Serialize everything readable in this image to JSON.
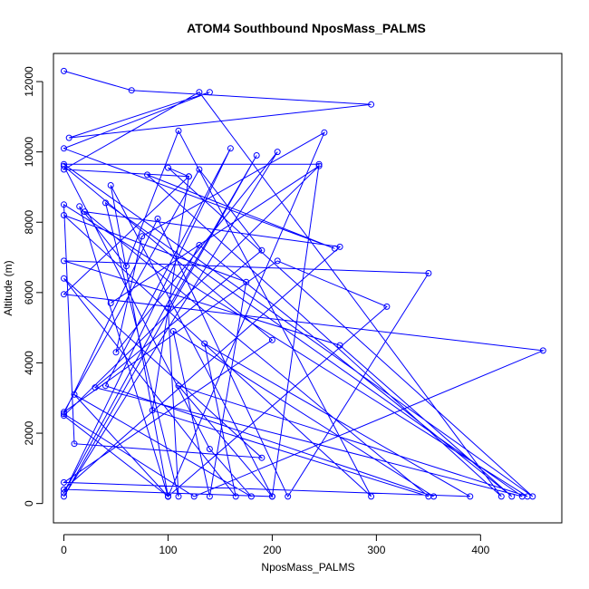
{
  "chart_data": {
    "type": "line",
    "title": "ATOM4 Southbound NposMass_PALMS",
    "xlabel": "NposMass_PALMS",
    "ylabel": "Altitude (m)",
    "xlim": [
      -10,
      478
    ],
    "ylim": [
      -550,
      12800
    ],
    "xticks": [
      "0",
      "100",
      "200",
      "300",
      "400"
    ],
    "yticks": [
      "0",
      "2000",
      "4000",
      "6000",
      "8000",
      "10000",
      "12000"
    ],
    "grid": false,
    "legend": "none",
    "colors": {
      "series": "#0000ff",
      "frame": "#000000"
    },
    "series": [
      {
        "x": [
          0,
          65,
          295,
          5,
          140,
          0,
          260,
          80,
          420,
          130,
          0,
          120,
          100,
          450,
          0,
          245,
          200,
          45,
          100,
          250,
          75,
          50,
          205,
          0,
          185,
          100,
          110,
          40,
          440,
          30,
          190,
          130,
          0,
          205,
          310,
          100,
          15,
          60,
          110,
          295,
          0,
          175,
          140,
          105,
          355,
          40,
          160,
          0,
          130,
          430,
          265,
          0,
          350,
          215,
          90,
          0,
          125,
          460,
          0,
          120,
          85,
          350,
          20,
          265,
          0,
          200,
          110,
          445,
          0,
          10,
          190,
          0,
          165,
          135,
          390,
          0,
          200,
          0,
          140,
          180,
          10,
          100,
          100,
          0,
          245,
          45
        ],
        "y": [
          12300,
          11750,
          11350,
          10400,
          11700,
          10100,
          7250,
          9350,
          200,
          11700,
          9500,
          9300,
          9550,
          200,
          9650,
          9650,
          200,
          9050,
          200,
          10550,
          7600,
          4300,
          10000,
          200,
          9900,
          5550,
          200,
          8550,
          200,
          3300,
          7200,
          9500,
          2600,
          6900,
          5600,
          200,
          8450,
          6750,
          10600,
          200,
          8200,
          6300,
          200,
          4900,
          200,
          3350,
          10100,
          300,
          7350,
          200,
          4500,
          6900,
          6550,
          200,
          8100,
          2550,
          200,
          4350,
          5950,
          9300,
          2650,
          200,
          8300,
          7300,
          400,
          200,
          3350,
          200,
          8500,
          1700,
          1300,
          6400,
          200,
          4550,
          200,
          600,
          4650,
          9600,
          1550,
          200,
          3100,
          200,
          200,
          2500,
          9600,
          5700
        ]
      }
    ]
  }
}
